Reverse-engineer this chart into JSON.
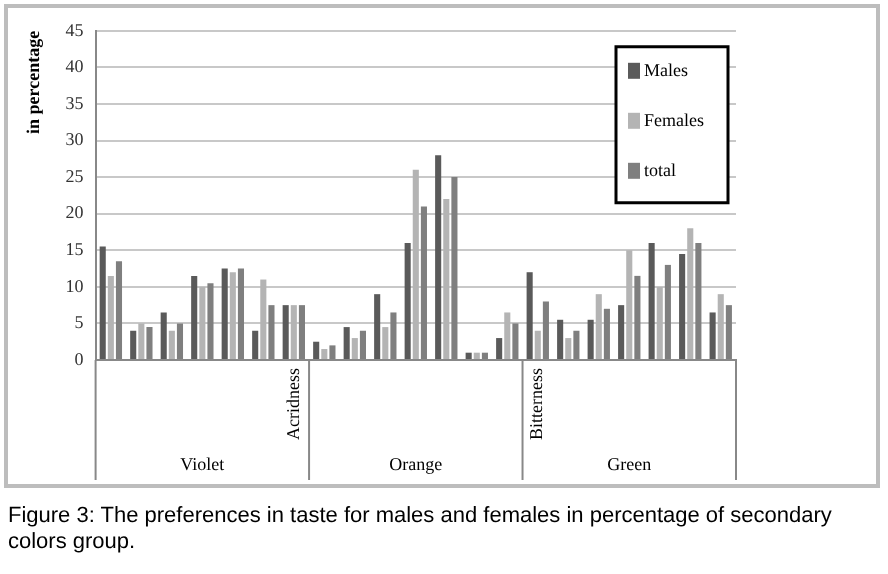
{
  "chart_data": {
    "type": "bar",
    "ylabel": "in percentage",
    "categories": [
      null,
      null,
      null,
      null,
      null,
      null,
      "Acridness",
      null,
      null,
      null,
      null,
      null,
      null,
      null,
      "Bitterness",
      null,
      null,
      null,
      null,
      null,
      null
    ],
    "series": [
      {
        "name": "Males",
        "color": "#5a5a5a",
        "values": [
          15.5,
          4,
          6.5,
          11.5,
          12.5,
          4,
          7.5,
          2.5,
          4.5,
          9,
          16,
          28,
          1,
          3,
          12,
          5.5,
          5.5,
          7.5,
          16,
          14.5,
          6.5
        ]
      },
      {
        "name": "Females",
        "color": "#b4b4b4",
        "values": [
          11.5,
          5,
          4,
          10,
          12,
          11,
          7.5,
          1.5,
          3,
          4.5,
          26,
          22,
          1,
          6.5,
          4,
          3,
          9,
          15,
          10,
          18,
          9
        ]
      },
      {
        "name": "total",
        "color": "#7f7f7f",
        "values": [
          13.5,
          4.5,
          5,
          10.5,
          12.5,
          7.5,
          7.5,
          2,
          4,
          6.5,
          21,
          25,
          1,
          5,
          8,
          4,
          7,
          11.5,
          13,
          16,
          7.5
        ]
      }
    ],
    "ylim": [
      0,
      45
    ],
    "yticks": [
      0,
      5,
      10,
      15,
      20,
      25,
      30,
      35,
      40,
      45
    ],
    "grid": "y",
    "legend": "top right",
    "annotations": [
      "Violet",
      "Orange",
      "Green",
      "Figure 3: The preferences in taste for males and females in percentage of secondary colors group."
    ]
  }
}
